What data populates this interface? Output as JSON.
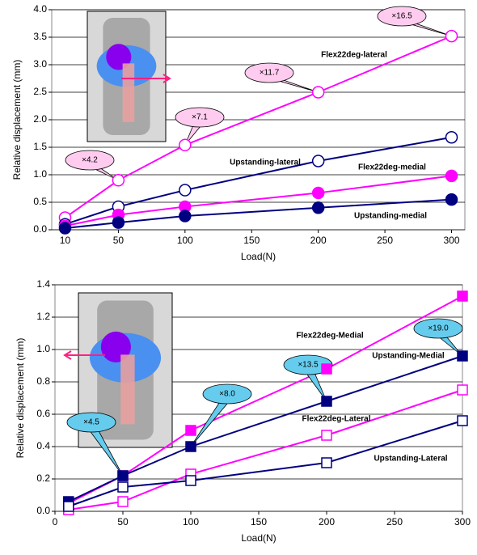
{
  "chart_data": [
    {
      "type": "line",
      "x_label": "Load(N)",
      "y_label": "Relative displacement (mm)",
      "x": [
        10,
        50,
        100,
        200,
        300
      ],
      "xlim": [
        0,
        310
      ],
      "xticks": [
        10,
        50,
        100,
        150,
        200,
        250,
        300
      ],
      "ylim": [
        0,
        4
      ],
      "yticks": [
        {
          "value": 0,
          "label": "0.0"
        },
        0.5,
        {
          "value": 1,
          "label": "1.0"
        },
        1.5,
        {
          "value": 2,
          "label": "2.0"
        },
        2.5,
        {
          "value": 3,
          "label": "3.0"
        },
        3.5,
        {
          "value": 4,
          "label": "4.0"
        }
      ],
      "grid": true,
      "marker": "circle",
      "series": [
        {
          "name": "Flex22deg-lateral",
          "color": "#ff00ff",
          "filled": false,
          "values": [
            0.22,
            0.9,
            1.54,
            2.5,
            3.52
          ]
        },
        {
          "name": "Upstanding-lateral",
          "color": "#000080",
          "filled": false,
          "values": [
            0.1,
            0.42,
            0.72,
            1.25,
            1.68
          ]
        },
        {
          "name": "Flex22deg-medial",
          "color": "#ff00ff",
          "filled": true,
          "values": [
            0.07,
            0.27,
            0.42,
            0.67,
            0.98
          ]
        },
        {
          "name": "Upstanding-medial",
          "color": "#000080",
          "filled": true,
          "values": [
            0.03,
            0.13,
            0.25,
            0.4,
            0.55
          ]
        }
      ],
      "annotations": [
        "×4.2",
        "×7.1",
        "×11.7",
        "×16.5"
      ],
      "annotation_color": "#ffccf0"
    },
    {
      "type": "line",
      "x_label": "Load(N)",
      "y_label": "Relative displacement (mm)",
      "x": [
        10,
        50,
        100,
        200,
        300
      ],
      "xlim": [
        0,
        300
      ],
      "xticks": [
        0,
        50,
        100,
        150,
        200,
        250,
        300
      ],
      "ylim": [
        0,
        1.4
      ],
      "yticks": [
        {
          "value": 0,
          "label": "0.0"
        },
        0.2,
        0.4,
        0.6,
        0.8,
        {
          "value": 1,
          "label": "1.0"
        },
        1.2,
        1.4
      ],
      "grid": true,
      "marker": "square",
      "series": [
        {
          "name": "Flex22deg-Medial",
          "color": "#ff00ff",
          "filled": true,
          "values": [
            0.05,
            0.22,
            0.5,
            0.88,
            1.33
          ]
        },
        {
          "name": "Upstanding-Medial",
          "color": "#000080",
          "filled": true,
          "values": [
            0.06,
            0.22,
            0.4,
            0.68,
            0.96
          ]
        },
        {
          "name": "Flex22deg-Lateral",
          "color": "#ff00ff",
          "filled": false,
          "values": [
            0.01,
            0.06,
            0.23,
            0.47,
            0.75
          ]
        },
        {
          "name": "Upstanding-Lateral",
          "color": "#000080",
          "filled": false,
          "values": [
            0.03,
            0.15,
            0.19,
            0.3,
            0.56
          ]
        }
      ],
      "annotations": [
        "×4.5",
        "×8.0",
        "×13.5",
        "×19.0"
      ],
      "annotation_color": "#66ccee"
    }
  ]
}
